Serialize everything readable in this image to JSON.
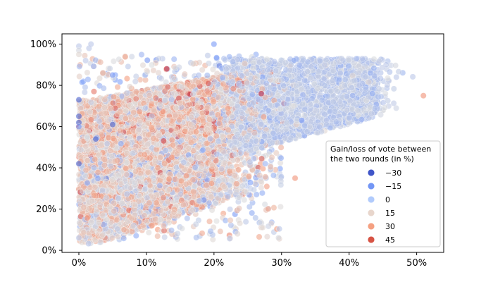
{
  "chart_data": {
    "type": "scatter",
    "title": "",
    "xlabel": "",
    "ylabel": "",
    "xlim": [
      -0.025,
      0.54
    ],
    "ylim": [
      -0.01,
      1.05
    ],
    "x_ticks": [
      {
        "value": 0.0,
        "label": "0%"
      },
      {
        "value": 0.1,
        "label": "10%"
      },
      {
        "value": 0.2,
        "label": "20%"
      },
      {
        "value": 0.3,
        "label": "30%"
      },
      {
        "value": 0.4,
        "label": "40%"
      },
      {
        "value": 0.5,
        "label": "50%"
      }
    ],
    "y_ticks": [
      {
        "value": 0.0,
        "label": "0%"
      },
      {
        "value": 0.2,
        "label": "20%"
      },
      {
        "value": 0.4,
        "label": "40%"
      },
      {
        "value": 0.6,
        "label": "60%"
      },
      {
        "value": 0.8,
        "label": "80%"
      },
      {
        "value": 1.0,
        "label": "100%"
      }
    ],
    "grid": false,
    "hue_variable": "Gain/loss of vote between the two rounds (in %)",
    "legend": {
      "placement": "lower-right",
      "title_lines": [
        "Gain/loss of vote between",
        "the two rounds (in %)"
      ],
      "entries": [
        {
          "label": "−30",
          "value": -30,
          "color": "#4055c8"
        },
        {
          "label": "−15",
          "value": -15,
          "color": "#7396f5"
        },
        {
          "label": "0",
          "value": 0,
          "color": "#b1cbfc"
        },
        {
          "label": "15",
          "value": 15,
          "color": "#e8d6cc"
        },
        {
          "label": "30",
          "value": 30,
          "color": "#f5a081"
        },
        {
          "label": "45",
          "value": 45,
          "color": "#d75344"
        }
      ]
    },
    "colormap": "coolwarm",
    "hue_range": [
      -35,
      50
    ],
    "point_alpha": 0.6,
    "approx_point_count": 11000,
    "clusters": [
      {
        "name": "main-cloud",
        "x_range": [
          0.0,
          0.3
        ],
        "y_range": [
          0.05,
          0.85
        ],
        "hue_mean": 12,
        "hue_sd": 10
      },
      {
        "name": "upper-right-cloud",
        "x_range": [
          0.22,
          0.46
        ],
        "y_range": [
          0.45,
          0.93
        ],
        "hue_mean": 0,
        "hue_sd": 4
      }
    ],
    "series": [
      {
        "values": [
          {
            "x": 0.0,
            "y": 0.99,
            "hue": 0
          },
          {
            "x": 0.0,
            "y": 0.97,
            "hue": 5
          },
          {
            "x": 0.0,
            "y": 0.95,
            "hue": 10
          },
          {
            "x": 0.0,
            "y": 0.73,
            "hue": -30
          },
          {
            "x": 0.0,
            "y": 0.65,
            "hue": -30
          },
          {
            "x": 0.0,
            "y": 0.62,
            "hue": -30
          },
          {
            "x": 0.0,
            "y": 0.6,
            "hue": -15
          },
          {
            "x": 0.0,
            "y": 0.42,
            "hue": -30
          },
          {
            "x": 0.0,
            "y": 0.06,
            "hue": 0
          },
          {
            "x": 0.01,
            "y": 0.92,
            "hue": 0
          },
          {
            "x": 0.015,
            "y": 0.98,
            "hue": 0
          },
          {
            "x": 0.018,
            "y": 1.0,
            "hue": 0
          },
          {
            "x": 0.025,
            "y": 0.54,
            "hue": -30
          },
          {
            "x": 0.05,
            "y": 0.61,
            "hue": -30
          },
          {
            "x": 0.05,
            "y": 0.85,
            "hue": -15
          },
          {
            "x": 0.13,
            "y": 0.88,
            "hue": 45
          },
          {
            "x": 0.2,
            "y": 1.0,
            "hue": -15
          },
          {
            "x": 0.27,
            "y": 0.76,
            "hue": 45
          },
          {
            "x": 0.33,
            "y": 0.63,
            "hue": -15
          },
          {
            "x": 0.32,
            "y": 0.35,
            "hue": 30
          },
          {
            "x": 0.47,
            "y": 0.84,
            "hue": 0
          },
          {
            "x": 0.51,
            "y": 0.75,
            "hue": 30
          }
        ]
      }
    ]
  }
}
